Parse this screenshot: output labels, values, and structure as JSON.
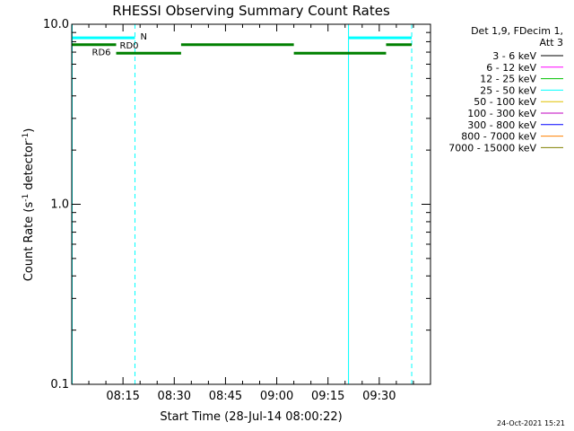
{
  "chart_data": {
    "type": "line",
    "title": "RHESSI Observing Summary Count Rates",
    "xlabel": "Start Time (28-Jul-14 08:00:22)",
    "ylabel_main": "Count Rate (s",
    "ylabel_sup1": "-1",
    "ylabel_mid": " detector",
    "ylabel_sup2": "-1",
    "ylabel_end": ")",
    "yscale": "log",
    "ylim": [
      0.1,
      10.0
    ],
    "xlim_minutes": [
      0,
      105
    ],
    "x_ticks": [
      {
        "label": "08:15",
        "minute": 15
      },
      {
        "label": "08:30",
        "minute": 30
      },
      {
        "label": "08:45",
        "minute": 45
      },
      {
        "label": "09:00",
        "minute": 60
      },
      {
        "label": "09:15",
        "minute": 75
      },
      {
        "label": "09:30",
        "minute": 90
      }
    ],
    "y_ticks": [
      {
        "label": "0.1",
        "value": 0.1
      },
      {
        "label": "1.0",
        "value": 1.0
      },
      {
        "label": "10.0",
        "value": 10.0
      }
    ],
    "legend": {
      "position": "right",
      "header": [
        "Det 1,9, FDecim 1,",
        "Att 3"
      ],
      "entries": [
        {
          "label": "3 - 6 keV",
          "color": "#000000"
        },
        {
          "label": "6 - 12 keV",
          "color": "#ff00ff"
        },
        {
          "label": "12 - 25 keV",
          "color": "#00c000"
        },
        {
          "label": "25 - 50 keV",
          "color": "#00ffff"
        },
        {
          "label": "50 - 100 keV",
          "color": "#e0c000"
        },
        {
          "label": "100 - 300 keV",
          "color": "#c000c0"
        },
        {
          "label": "300 - 800 keV",
          "color": "#0000ff"
        },
        {
          "label": "800 - 7000 keV",
          "color": "#ff8000"
        },
        {
          "label": "7000 - 15000 keV",
          "color": "#808000"
        }
      ]
    },
    "flag_segments": [
      {
        "label": "N",
        "color": "#00ffff",
        "y": 8.4,
        "intervals": [
          [
            0,
            18.5
          ],
          [
            81,
            99.5
          ]
        ]
      },
      {
        "label": "RD0",
        "color": "#008000",
        "y": 7.7,
        "intervals": [
          [
            0,
            13
          ],
          [
            32,
            65
          ],
          [
            92,
            99.5
          ]
        ]
      },
      {
        "label": "RD6",
        "color": "#008000",
        "y": 6.9,
        "intervals": [
          [
            13,
            32
          ],
          [
            65,
            92
          ]
        ]
      }
    ],
    "vertical_lines": [
      {
        "minute": 0,
        "style": "solid",
        "color": "#00ffff"
      },
      {
        "minute": 18.5,
        "style": "dashed",
        "color": "#00ffff"
      },
      {
        "minute": 81,
        "style": "solid",
        "color": "#00ffff"
      },
      {
        "minute": 99.5,
        "style": "dashed",
        "color": "#00ffff"
      }
    ],
    "timestamp": "24-Oct-2021 15:21"
  }
}
